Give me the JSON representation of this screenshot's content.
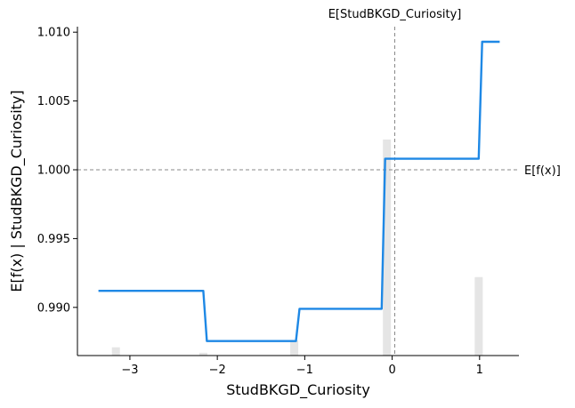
{
  "chart_data": {
    "type": "line",
    "title": "",
    "xlabel": "StudBKGD_Curiosity",
    "ylabel": "E[f(x) | StudBKGD_Curiosity]",
    "xlim": [
      -3.6,
      1.45
    ],
    "ylim": [
      0.9865,
      1.0104
    ],
    "xticks": [
      -3,
      -2,
      -1,
      0,
      1
    ],
    "xtick_labels": [
      "−3",
      "−2",
      "−1",
      "0",
      "1"
    ],
    "yticks": [
      0.99,
      0.995,
      1.0,
      1.005,
      1.01
    ],
    "ytick_labels": [
      "0.990",
      "0.995",
      "1.000",
      "1.005",
      "1.010"
    ],
    "series": [
      {
        "color": "#1e88e5",
        "x": [
          -3.36,
          -2.16,
          -2.12,
          -1.1,
          -1.06,
          -0.12,
          -0.08,
          0.99,
          1.03,
          1.23
        ],
        "y": [
          0.9912,
          0.9912,
          0.98755,
          0.98755,
          0.9899,
          0.9899,
          1.0008,
          1.0008,
          1.0093,
          1.0093
        ]
      }
    ],
    "histogram": {
      "color": "#e5e5e5",
      "bins": [
        {
          "x": -3.16,
          "height": 0.0006
        },
        {
          "x": -2.16,
          "height": 0.0002
        },
        {
          "x": -1.12,
          "height": 0.0011
        },
        {
          "x": -0.06,
          "height": 0.0157
        },
        {
          "x": 0.99,
          "height": 0.0057
        }
      ]
    },
    "reference_lines": {
      "expected_value": {
        "y": 1.0,
        "label": "E[f(x)]"
      },
      "feature_mean": {
        "x": 0.03,
        "label": "E[StudBKGD_Curiosity]"
      }
    },
    "grid": false,
    "legend": "none"
  }
}
